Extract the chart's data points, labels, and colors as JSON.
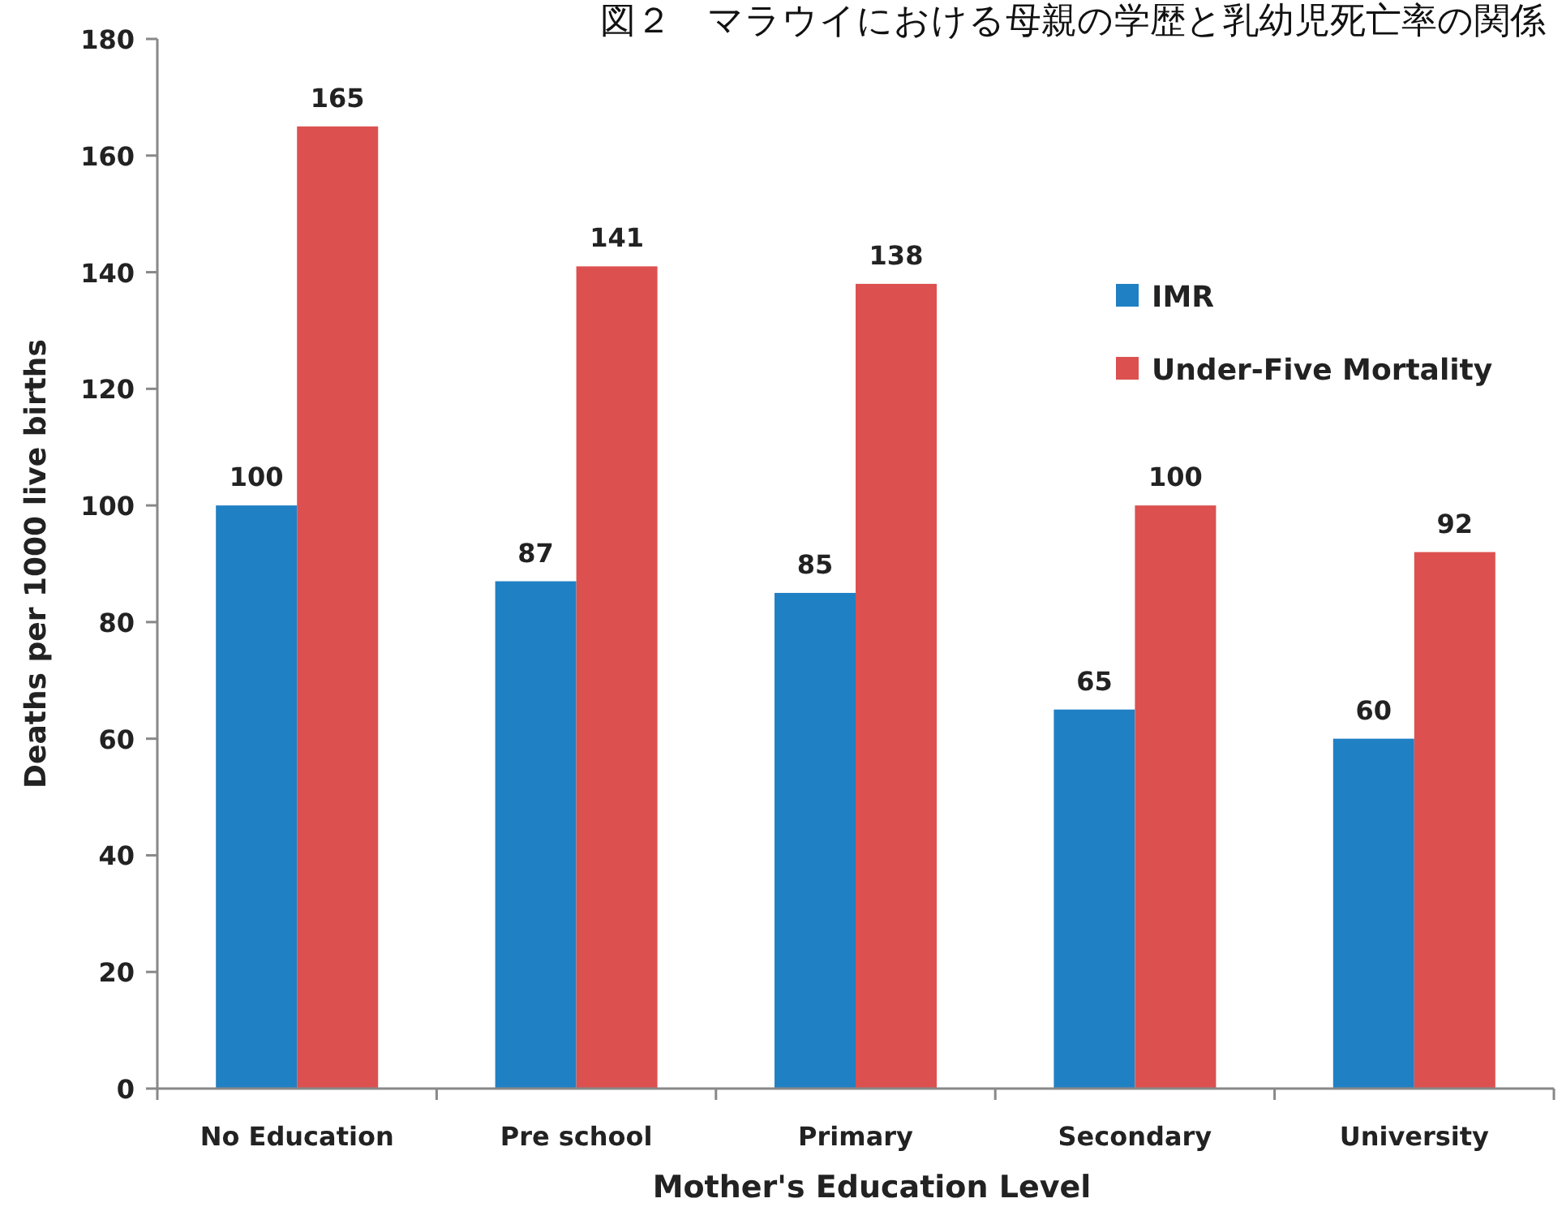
{
  "chart_data": {
    "type": "bar",
    "title": "図２　マラウイにおける母親の学歴と乳幼児死亡率の関係",
    "xlabel": "Mother's Education Level",
    "ylabel": "Deaths per 1000 live births",
    "categories": [
      "No Education",
      "Pre school",
      "Primary",
      "Secondary",
      "University"
    ],
    "series": [
      {
        "name": "IMR",
        "color": "#2080c4",
        "values": [
          100,
          87,
          85,
          65,
          60
        ]
      },
      {
        "name": "Under-Five Mortality",
        "color": "#dc5150",
        "values": [
          165,
          141,
          138,
          100,
          92
        ]
      }
    ],
    "ylim": [
      0,
      180
    ],
    "yticks": [
      0,
      20,
      40,
      60,
      80,
      100,
      120,
      140,
      160,
      180
    ],
    "data_labels": true,
    "legend": "right",
    "grid": false
  }
}
